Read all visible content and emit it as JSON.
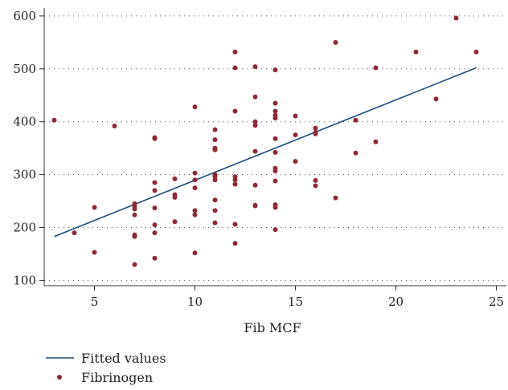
{
  "chart_data": {
    "type": "scatter",
    "xlabel": "Fib MCF",
    "ylabel": "",
    "xlim": [
      2.5,
      25.5
    ],
    "ylim": [
      90,
      615
    ],
    "xticks": [
      5,
      10,
      15,
      20,
      25
    ],
    "yticks": [
      100,
      200,
      300,
      400,
      500,
      600
    ],
    "grid": "horizontal-dotted",
    "legend_placement": "bottom-left",
    "colors": {
      "fit": "#1f4e79",
      "points": "#8b2b36"
    },
    "series": [
      {
        "name": "Fitted values",
        "kind": "line",
        "x": [
          3,
          24
        ],
        "y": [
          183,
          502
        ]
      },
      {
        "name": "Fibrinogen",
        "kind": "scatter",
        "x": [
          3,
          4,
          5,
          5,
          6,
          7,
          7,
          7,
          7,
          7,
          7,
          7,
          8,
          8,
          8,
          8,
          8,
          8,
          8,
          8,
          9,
          9,
          9,
          9,
          10,
          10,
          10,
          10,
          10,
          10,
          10,
          11,
          11,
          11,
          11,
          11,
          11,
          11,
          11,
          11,
          11,
          12,
          12,
          12,
          12,
          12,
          12,
          12,
          12,
          13,
          13,
          13,
          13,
          13,
          13,
          13,
          13,
          14,
          14,
          14,
          14,
          14,
          14,
          14,
          14,
          14,
          14,
          14,
          14,
          14,
          15,
          15,
          15,
          16,
          16,
          16,
          16,
          16,
          17,
          17,
          18,
          18,
          19,
          19,
          21,
          22,
          23,
          24
        ],
        "y": [
          403,
          190,
          238,
          153,
          392,
          245,
          240,
          235,
          224,
          186,
          183,
          130,
          370,
          368,
          285,
          270,
          237,
          205,
          190,
          142,
          292,
          262,
          257,
          211,
          428,
          303,
          290,
          275,
          232,
          224,
          152,
          385,
          366,
          350,
          347,
          300,
          296,
          290,
          252,
          232,
          209,
          532,
          502,
          420,
          296,
          290,
          282,
          206,
          170,
          504,
          447,
          400,
          393,
          344,
          280,
          242,
          241,
          498,
          435,
          420,
          412,
          407,
          368,
          342,
          312,
          307,
          288,
          243,
          238,
          196,
          411,
          375,
          325,
          388,
          380,
          377,
          289,
          279,
          550,
          256,
          403,
          341,
          502,
          362,
          532,
          443,
          596,
          532
        ]
      }
    ]
  }
}
